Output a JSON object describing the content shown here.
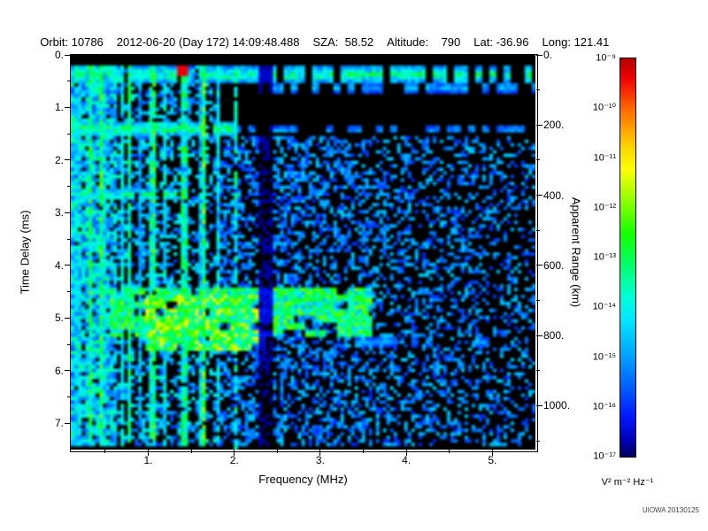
{
  "header": {
    "segments": [
      "Orbit: 10786",
      "2012-06-20 (Day 172) 14:09:48.488",
      "SZA:  58.52",
      "Altitude:    790",
      "Lat: -36.96",
      "Long: 121.41"
    ]
  },
  "watermark": "UIOWA 20130125",
  "chart_data": {
    "type": "heatmap",
    "description": "Radar sounder ionogram: echo spectral density versus frequency and time delay, blocky rainbow-colormap spectrogram on black background",
    "xlabel": "Frequency (MHz)",
    "ylabel_left": "Time Delay (ms)",
    "ylabel_right": "Apparent Range (km)",
    "xlim": [
      0.1,
      5.5
    ],
    "ylim_ms": [
      0,
      7.5
    ],
    "range_km_per_ms": 150,
    "background": "#000000",
    "x_ticks": [
      {
        "v": 1,
        "label": "1."
      },
      {
        "v": 2,
        "label": "2."
      },
      {
        "v": 3,
        "label": "3."
      },
      {
        "v": 4,
        "label": "4."
      },
      {
        "v": 5,
        "label": "5."
      }
    ],
    "y_ticks_ms": [
      {
        "v": 0,
        "label": "0."
      },
      {
        "v": 1,
        "label": "1."
      },
      {
        "v": 2,
        "label": "2."
      },
      {
        "v": 3,
        "label": "3."
      },
      {
        "v": 4,
        "label": "4."
      },
      {
        "v": 5,
        "label": "5."
      },
      {
        "v": 6,
        "label": "6."
      },
      {
        "v": 7,
        "label": "7."
      }
    ],
    "y_ticks_km": [
      {
        "v": 0,
        "label": "0."
      },
      {
        "v": 200,
        "label": "200."
      },
      {
        "v": 400,
        "label": "400."
      },
      {
        "v": 600,
        "label": "600."
      },
      {
        "v": 800,
        "label": "800."
      },
      {
        "v": 1000,
        "label": "1000."
      }
    ],
    "colorbar": {
      "scale": "log",
      "max_label": "10⁻⁹",
      "min_label": "10⁻¹⁷",
      "tick_labels": [
        "10⁻⁹",
        "10⁻¹⁰",
        "10⁻¹¹",
        "10⁻¹²",
        "10⁻¹³",
        "10⁻¹⁴",
        "10⁻¹⁵",
        "10⁻¹⁶",
        "10⁻¹⁷"
      ],
      "unit": "V² m⁻² Hz⁻¹",
      "colormap": [
        {
          "pos": 0.0,
          "color": "#b40000"
        },
        {
          "pos": 0.05,
          "color": "#f00000"
        },
        {
          "pos": 0.13,
          "color": "#ff6c00"
        },
        {
          "pos": 0.22,
          "color": "#ffd200"
        },
        {
          "pos": 0.28,
          "color": "#fbff00"
        },
        {
          "pos": 0.36,
          "color": "#8cff00"
        },
        {
          "pos": 0.44,
          "color": "#14ff00"
        },
        {
          "pos": 0.52,
          "color": "#00ff6c"
        },
        {
          "pos": 0.6,
          "color": "#00ffd8"
        },
        {
          "pos": 0.66,
          "color": "#00e4ff"
        },
        {
          "pos": 0.74,
          "color": "#00a8ff"
        },
        {
          "pos": 0.82,
          "color": "#0064ff"
        },
        {
          "pos": 0.9,
          "color": "#0018ff"
        },
        {
          "pos": 0.96,
          "color": "#0000b4"
        },
        {
          "pos": 1.0,
          "color": "#00005a"
        }
      ]
    },
    "features": [
      {
        "type": "column_noise",
        "name": "low-frequency-noise-column",
        "f": [
          0.1,
          0.62
        ],
        "d": [
          0.18,
          7.45
        ],
        "density": 0.88,
        "intensity": 0.42
      },
      {
        "type": "harmonic_stripes",
        "name": "electron-plasma-harmonic-lines",
        "f": [
          0.1,
          1.85
        ],
        "d": [
          0.18,
          7.45
        ],
        "spacing": 0.048,
        "prob": 0.6,
        "intensity": 0.55
      },
      {
        "type": "speckle",
        "name": "midband-fill",
        "f": [
          0.62,
          1.85
        ],
        "d": [
          0.18,
          7.45
        ],
        "density": 0.4,
        "intensity": 0.3,
        "falloff": 0
      },
      {
        "type": "vline",
        "name": "harmonic-line-2MHz",
        "fc": 2.02,
        "halfwidth": 0.035,
        "gap": 0.3,
        "intensity": 0.45
      },
      {
        "type": "hband",
        "name": "first-echo-band-0.4ms",
        "d": 0.38,
        "halfwidth": 0.15,
        "f": [
          0.15,
          5.5
        ],
        "gap": 0.22,
        "intensity": 0.52
      },
      {
        "type": "hband",
        "name": "secondary-top-dots",
        "d": 0.62,
        "halfwidth": 0.09,
        "f": [
          2.3,
          5.5
        ],
        "gap": 0.55,
        "intensity": 0.34
      },
      {
        "type": "hband",
        "name": "echo-band-1.4ms",
        "d": 1.4,
        "halfwidth": 0.12,
        "f": [
          0.1,
          2.05
        ],
        "gap": 0.08,
        "intensity": 0.58
      },
      {
        "type": "hband",
        "name": "echo-band-1.4ms-extension",
        "d": 1.42,
        "halfwidth": 0.08,
        "f": [
          2.05,
          5.5
        ],
        "gap": 0.45,
        "intensity": 0.3
      },
      {
        "type": "hband",
        "name": "echo-band-2.65ms",
        "d": 2.65,
        "halfwidth": 0.1,
        "f": [
          0.1,
          1.35
        ],
        "gap": 0.15,
        "intensity": 0.5
      },
      {
        "type": "hband",
        "name": "echo-band-3.95ms",
        "d": 3.95,
        "halfwidth": 0.09,
        "f": [
          0.1,
          0.6
        ],
        "gap": 0.2,
        "intensity": 0.45
      },
      {
        "type": "speckle",
        "name": "diffuse-scatter",
        "f": [
          1.85,
          5.5
        ],
        "d": [
          1.55,
          7.45
        ],
        "density": 0.55,
        "intensity": 0.24,
        "falloff": 0.45
      },
      {
        "type": "blob",
        "name": "ionospheric-echo-trace-4.9ms",
        "f": [
          0.55,
          3.6
        ],
        "d": [
          4.45,
          5.35
        ],
        "density": 0.85,
        "intensity": 0.55
      },
      {
        "type": "blob",
        "name": "ionospheric-echo-core",
        "f": [
          0.95,
          2.35
        ],
        "d": [
          4.55,
          5.65
        ],
        "density": 0.9,
        "intensity": 0.66
      },
      {
        "type": "hband",
        "name": "ground-echo-800km",
        "d": 5.45,
        "halfwidth": 0.08,
        "f": [
          3.4,
          5.5
        ],
        "gap": 0.5,
        "intensity": 0.28
      },
      {
        "type": "hotspot",
        "name": "saturated-pixel",
        "fc": 1.38,
        "dc": 0.26,
        "intensity": 0.95
      },
      {
        "type": "vgap",
        "name": "attenuation-gap-2.35MHz",
        "f": [
          2.28,
          2.46
        ],
        "factor": 0.15
      },
      {
        "type": "hgap",
        "name": "zero-delay-blanking",
        "d": [
          0.0,
          0.18
        ],
        "factor": 0.0
      }
    ]
  }
}
